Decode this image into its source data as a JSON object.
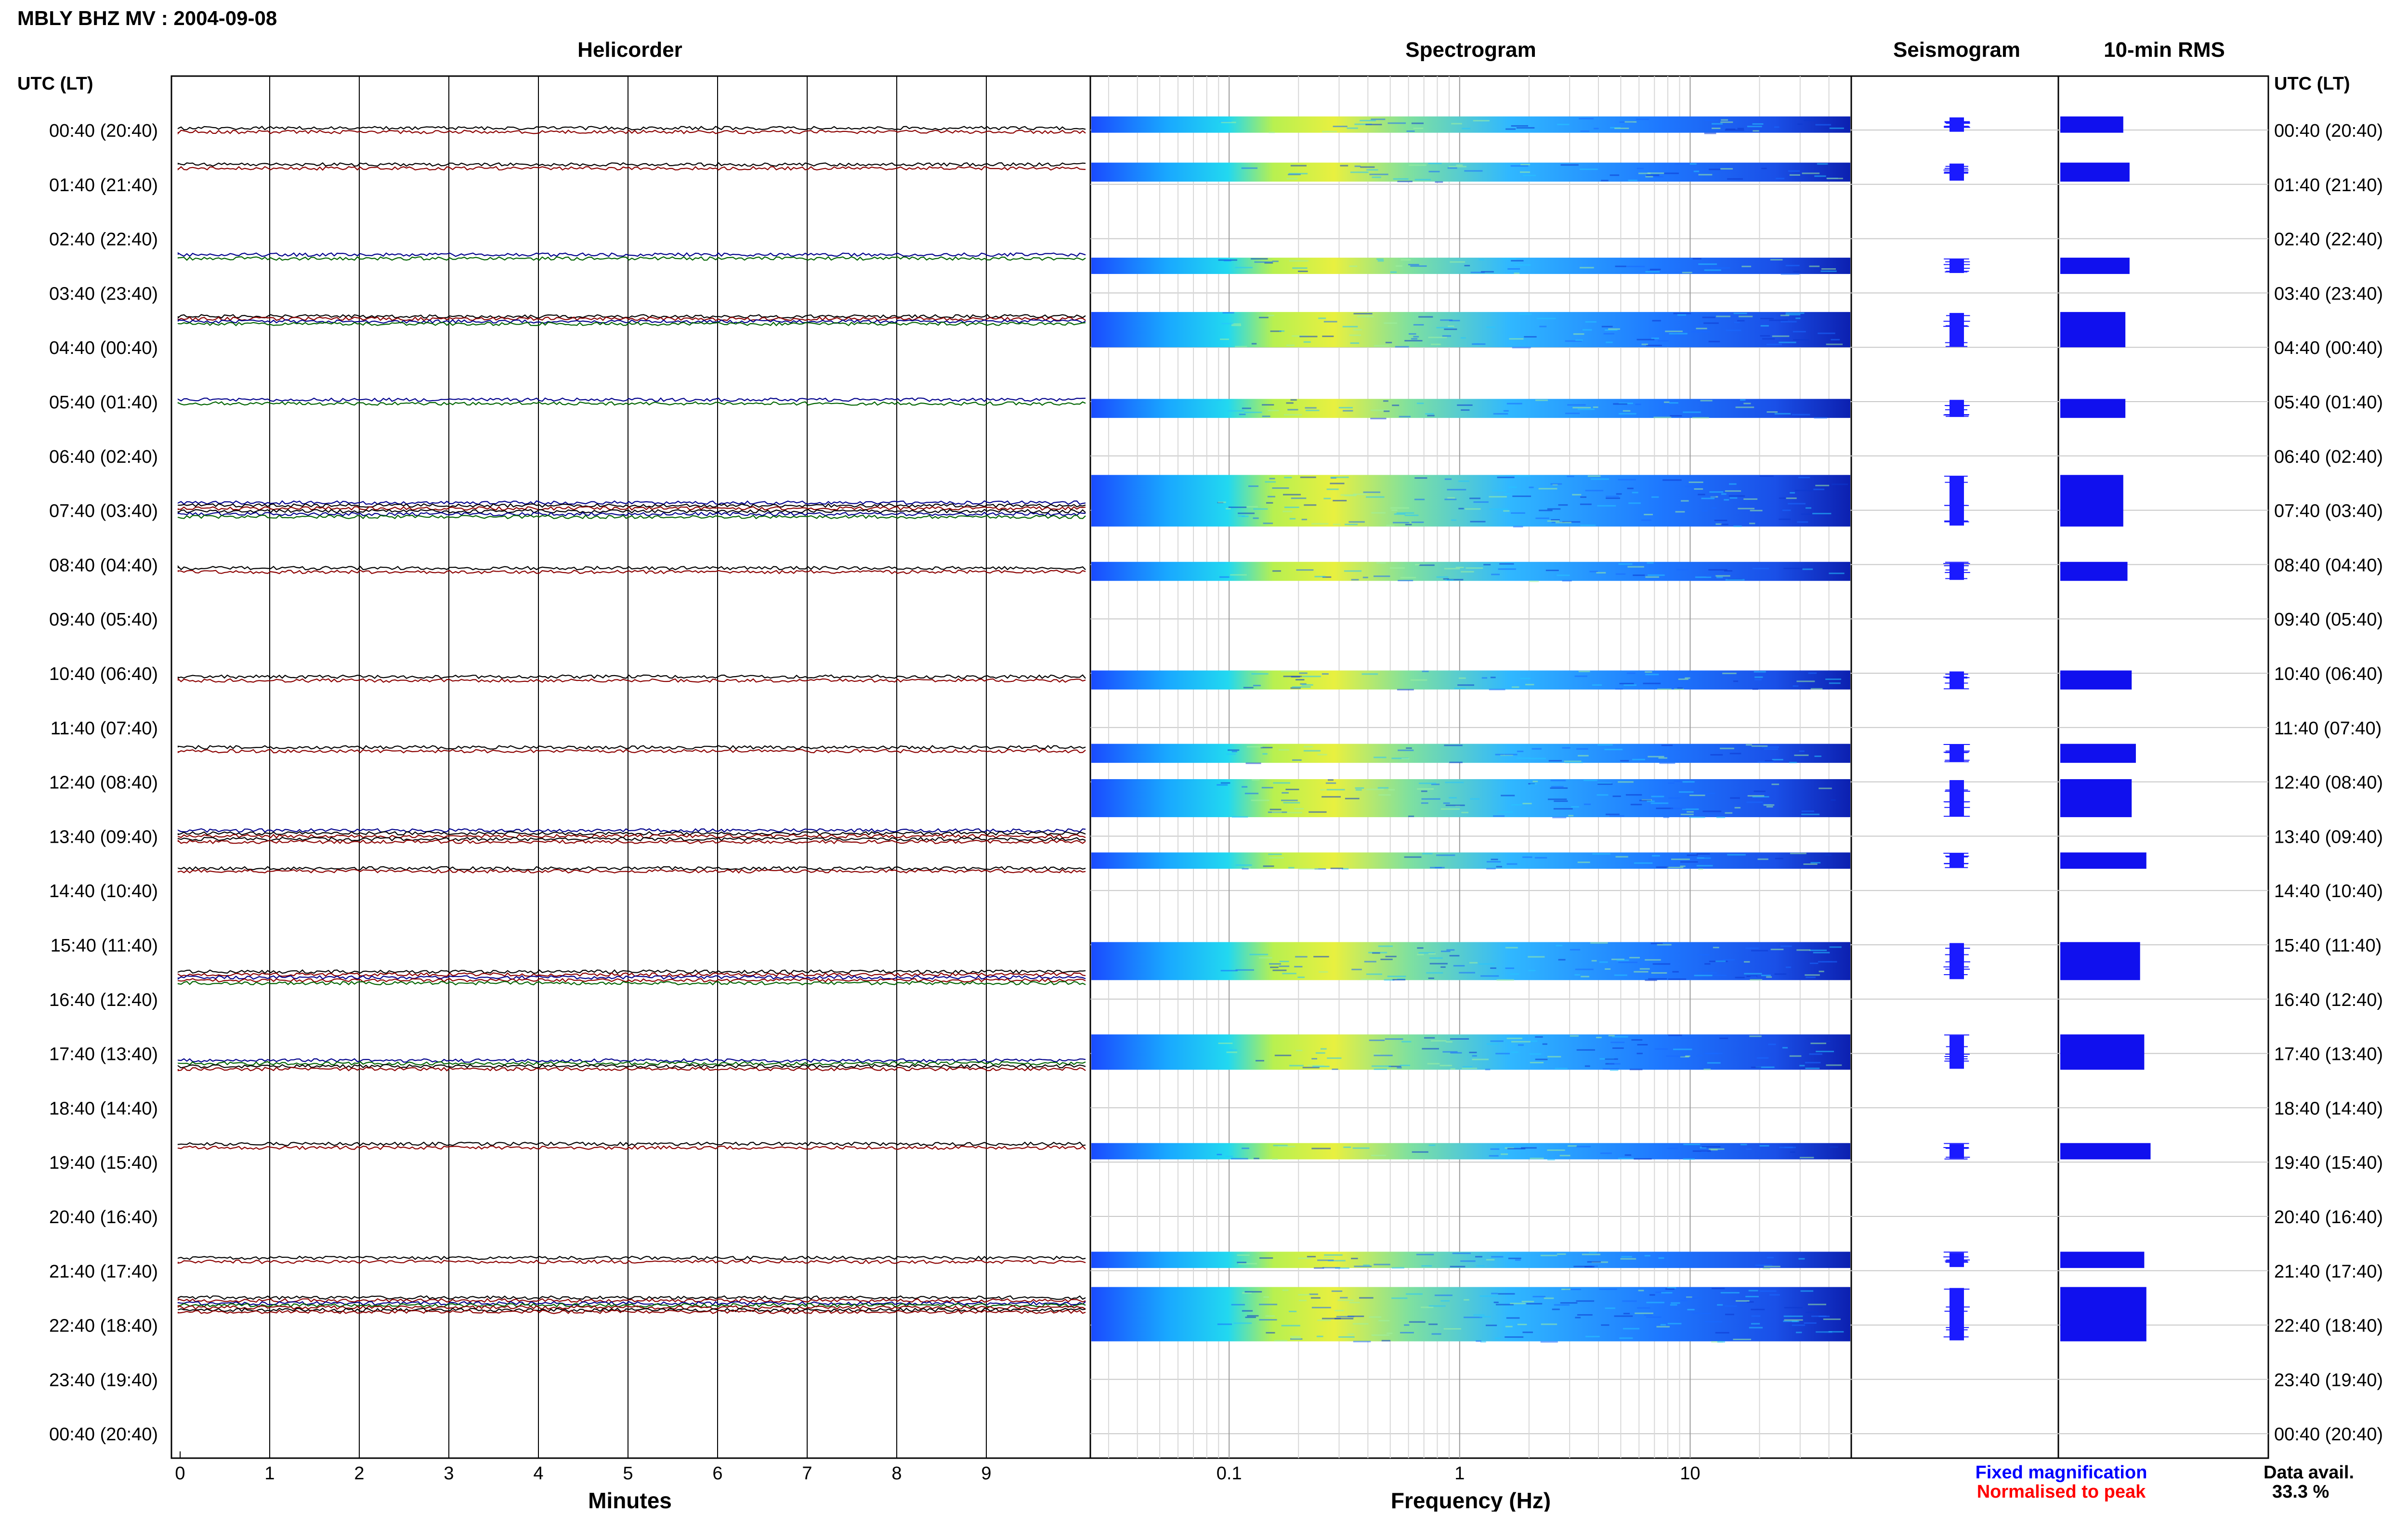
{
  "title": "MBLY BHZ MV : 2004-09-08",
  "panels": {
    "helicorder": "Helicorder",
    "spectrogram": "Spectrogram",
    "seismogram": "Seismogram",
    "rms": "10-min RMS"
  },
  "axis_labels": {
    "utc_left": "UTC (LT)",
    "utc_right": "UTC (LT)",
    "minutes": "Minutes",
    "frequency": "Frequency (Hz)"
  },
  "legend": {
    "fixed": "Fixed magnification",
    "normalised": "Normalised to peak",
    "fixed_color": "#0000ff",
    "normalised_color": "#ff0000"
  },
  "data_avail": {
    "label": "Data avail.",
    "value": "33.3 %"
  },
  "chart_data": {
    "type": "helicorder",
    "time_rows": [
      "00:40 (20:40)",
      "01:40 (21:40)",
      "02:40 (22:40)",
      "03:40 (23:40)",
      "04:40 (00:40)",
      "05:40 (01:40)",
      "06:40 (02:40)",
      "07:40 (03:40)",
      "08:40 (04:40)",
      "09:40 (05:40)",
      "10:40 (06:40)",
      "11:40 (07:40)",
      "12:40 (08:40)",
      "13:40 (09:40)",
      "14:40 (10:40)",
      "15:40 (11:40)",
      "16:40 (12:40)",
      "17:40 (13:40)",
      "18:40 (14:40)",
      "19:40 (15:40)",
      "20:40 (16:40)",
      "21:40 (17:40)",
      "22:40 (18:40)",
      "23:40 (19:40)",
      "00:40 (20:40)"
    ],
    "minute_ticks": [
      "0",
      "1",
      "2",
      "3",
      "4",
      "5",
      "6",
      "7",
      "8",
      "9"
    ],
    "xlim_minutes": [
      0,
      10
    ],
    "freq_ticks": [
      "0.1",
      "1",
      "10"
    ],
    "freq_range_hz": [
      0.025,
      50
    ],
    "freq_scale": "log",
    "trace_colors": [
      "#000000",
      "#8b0000",
      "#00008b",
      "#006400"
    ],
    "traces": [
      {
        "row": 0,
        "offset": -0.1,
        "color": "#000000"
      },
      {
        "row": 0,
        "offset": 0.1,
        "color": "#8b0000"
      },
      {
        "row": 0.67,
        "offset": -0.1,
        "color": "#000000"
      },
      {
        "row": 0.67,
        "offset": 0.1,
        "color": "#8b0000"
      },
      {
        "row": 2.33,
        "offset": -0.1,
        "color": "#00008b"
      },
      {
        "row": 2.33,
        "offset": 0.1,
        "color": "#006400"
      },
      {
        "row": 3.5,
        "offset": -0.2,
        "color": "#000000"
      },
      {
        "row": 3.5,
        "offset": -0.07,
        "color": "#8b0000"
      },
      {
        "row": 3.5,
        "offset": 0.07,
        "color": "#00008b"
      },
      {
        "row": 3.5,
        "offset": 0.2,
        "color": "#006400"
      },
      {
        "row": 5.0,
        "offset": -0.1,
        "color": "#00008b"
      },
      {
        "row": 5.0,
        "offset": 0.1,
        "color": "#006400"
      },
      {
        "row": 7.0,
        "offset": -0.4,
        "color": "#00008b"
      },
      {
        "row": 7.0,
        "offset": -0.25,
        "color": "#000000"
      },
      {
        "row": 7.0,
        "offset": -0.1,
        "color": "#8b0000"
      },
      {
        "row": 7.0,
        "offset": 0.05,
        "color": "#000000"
      },
      {
        "row": 7.0,
        "offset": 0.2,
        "color": "#00008b"
      },
      {
        "row": 7.0,
        "offset": 0.35,
        "color": "#006400"
      },
      {
        "row": 8.1,
        "offset": -0.1,
        "color": "#000000"
      },
      {
        "row": 8.1,
        "offset": 0.1,
        "color": "#8b0000"
      },
      {
        "row": 10.1,
        "offset": -0.1,
        "color": "#000000"
      },
      {
        "row": 10.1,
        "offset": 0.1,
        "color": "#8b0000"
      },
      {
        "row": 11.4,
        "offset": -0.1,
        "color": "#000000"
      },
      {
        "row": 11.4,
        "offset": 0.1,
        "color": "#8b0000"
      },
      {
        "row": 13.0,
        "offset": -0.3,
        "color": "#00008b"
      },
      {
        "row": 13.0,
        "offset": -0.15,
        "color": "#000000"
      },
      {
        "row": 13.0,
        "offset": 0.0,
        "color": "#8b0000"
      },
      {
        "row": 13.0,
        "offset": 0.15,
        "color": "#000000"
      },
      {
        "row": 13.0,
        "offset": 0.3,
        "color": "#8b0000"
      },
      {
        "row": 13.4,
        "offset": 0.55,
        "color": "#000000"
      },
      {
        "row": 13.4,
        "offset": 0.7,
        "color": "#8b0000"
      },
      {
        "row": 15.6,
        "offset": -0.3,
        "color": "#000000"
      },
      {
        "row": 15.6,
        "offset": -0.15,
        "color": "#8b0000"
      },
      {
        "row": 15.6,
        "offset": 0.0,
        "color": "#00008b"
      },
      {
        "row": 15.6,
        "offset": 0.15,
        "color": "#8b0000"
      },
      {
        "row": 15.6,
        "offset": 0.3,
        "color": "#006400"
      },
      {
        "row": 17.2,
        "offset": -0.2,
        "color": "#00008b"
      },
      {
        "row": 17.2,
        "offset": -0.05,
        "color": "#006400"
      },
      {
        "row": 17.2,
        "offset": 0.1,
        "color": "#000000"
      },
      {
        "row": 17.2,
        "offset": 0.25,
        "color": "#8b0000"
      },
      {
        "row": 18.7,
        "offset": -0.1,
        "color": "#000000"
      },
      {
        "row": 18.7,
        "offset": 0.1,
        "color": "#8b0000"
      },
      {
        "row": 20.8,
        "offset": -0.1,
        "color": "#000000"
      },
      {
        "row": 20.8,
        "offset": 0.1,
        "color": "#8b0000"
      },
      {
        "row": 21.6,
        "offset": -0.3,
        "color": "#000000"
      },
      {
        "row": 21.6,
        "offset": -0.15,
        "color": "#8b0000"
      },
      {
        "row": 21.6,
        "offset": 0.0,
        "color": "#00008b"
      },
      {
        "row": 21.6,
        "offset": 0.1,
        "color": "#006400"
      },
      {
        "row": 21.6,
        "offset": 0.22,
        "color": "#8b0000"
      },
      {
        "row": 21.6,
        "offset": 0.35,
        "color": "#000000"
      },
      {
        "row": 21.6,
        "offset": 0.45,
        "color": "#8b0000"
      }
    ],
    "spectrogram_blocks": [
      {
        "start_row": -0.25,
        "end_row": 0.05
      },
      {
        "start_row": 0.6,
        "end_row": 0.95
      },
      {
        "start_row": 2.35,
        "end_row": 2.65
      },
      {
        "start_row": 3.35,
        "end_row": 4.0
      },
      {
        "start_row": 4.95,
        "end_row": 5.3
      },
      {
        "start_row": 6.35,
        "end_row": 7.3
      },
      {
        "start_row": 7.95,
        "end_row": 8.3
      },
      {
        "start_row": 9.95,
        "end_row": 10.3
      },
      {
        "start_row": 11.3,
        "end_row": 11.65
      },
      {
        "start_row": 11.95,
        "end_row": 12.65
      },
      {
        "start_row": 13.3,
        "end_row": 13.6
      },
      {
        "start_row": 14.95,
        "end_row": 15.65
      },
      {
        "start_row": 16.65,
        "end_row": 17.3
      },
      {
        "start_row": 18.65,
        "end_row": 18.95
      },
      {
        "start_row": 20.65,
        "end_row": 20.95
      },
      {
        "start_row": 21.3,
        "end_row": 22.3
      }
    ],
    "rms_blocks": [
      {
        "start_row": -0.25,
        "end_row": 0.05,
        "level": 0.3
      },
      {
        "start_row": 0.6,
        "end_row": 0.95,
        "level": 0.33
      },
      {
        "start_row": 2.35,
        "end_row": 2.65,
        "level": 0.33
      },
      {
        "start_row": 3.35,
        "end_row": 4.0,
        "level": 0.31
      },
      {
        "start_row": 4.95,
        "end_row": 5.3,
        "level": 0.31
      },
      {
        "start_row": 6.35,
        "end_row": 7.3,
        "level": 0.3
      },
      {
        "start_row": 7.95,
        "end_row": 8.3,
        "level": 0.32
      },
      {
        "start_row": 9.95,
        "end_row": 10.3,
        "level": 0.34
      },
      {
        "start_row": 11.3,
        "end_row": 11.65,
        "level": 0.36
      },
      {
        "start_row": 11.95,
        "end_row": 12.65,
        "level": 0.34
      },
      {
        "start_row": 13.3,
        "end_row": 13.6,
        "level": 0.41
      },
      {
        "start_row": 14.95,
        "end_row": 15.65,
        "level": 0.38
      },
      {
        "start_row": 16.65,
        "end_row": 17.3,
        "level": 0.4
      },
      {
        "start_row": 18.65,
        "end_row": 18.95,
        "level": 0.43
      },
      {
        "start_row": 20.65,
        "end_row": 20.95,
        "level": 0.4
      },
      {
        "start_row": 21.3,
        "end_row": 22.3,
        "level": 0.41
      }
    ]
  }
}
